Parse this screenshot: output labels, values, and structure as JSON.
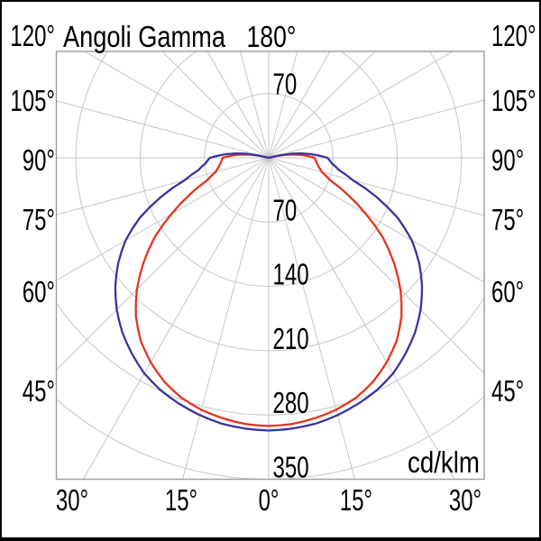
{
  "chart_data": {
    "type": "line",
    "subtype": "polar-photometric",
    "title": "Angoli Gamma",
    "unit_label": "cd/klm",
    "angle_axis": {
      "top_label": "180°",
      "side_labels": [
        "120°",
        "105°",
        "90°",
        "75°",
        "60°",
        "45°"
      ],
      "bottom_labels": [
        "30°",
        "15°",
        "0°",
        "15°",
        "30°"
      ],
      "angle_step_deg": 15
    },
    "radial_axis": {
      "ticks": [
        70,
        140,
        210,
        280,
        350
      ],
      "tick_labels": [
        "70",
        "140",
        "210",
        "280",
        "350"
      ],
      "top_tick_label": "70",
      "max": 350,
      "units": "cd/klm"
    },
    "layout": {
      "grid": "on",
      "legend": "none",
      "symmetric_about_vertical_axis": true,
      "gamma_range_deg": [
        -105,
        105
      ],
      "grid_color": "#c6c6c6",
      "border_color": "#9b9b9b",
      "frame_color": "#000000",
      "background": "#ffffff"
    },
    "series": [
      {
        "id": "curve-red",
        "color": "#e2361c",
        "gamma_deg": [
          0,
          5,
          10,
          15,
          20,
          25,
          30,
          35,
          40,
          45,
          50,
          55,
          60,
          65,
          70,
          75,
          80,
          85,
          90,
          95,
          100,
          105
        ],
        "values_cd_per_klm": [
          292,
          291,
          288,
          284,
          278,
          269,
          257,
          243,
          225,
          203,
          178,
          152,
          122,
          95,
          71,
          60,
          55,
          52,
          50,
          36,
          20,
          0
        ]
      },
      {
        "id": "curve-blue",
        "color": "#3b33a0",
        "gamma_deg": [
          0,
          5,
          10,
          15,
          20,
          25,
          30,
          35,
          40,
          45,
          50,
          55,
          60,
          65,
          70,
          75,
          80,
          85,
          90,
          95,
          100,
          105
        ],
        "values_cd_per_klm": [
          297,
          296,
          294,
          290,
          285,
          279,
          271,
          260,
          248,
          234,
          218,
          200,
          180,
          155,
          125,
          95,
          78,
          69,
          64,
          46,
          26,
          0
        ]
      }
    ]
  }
}
